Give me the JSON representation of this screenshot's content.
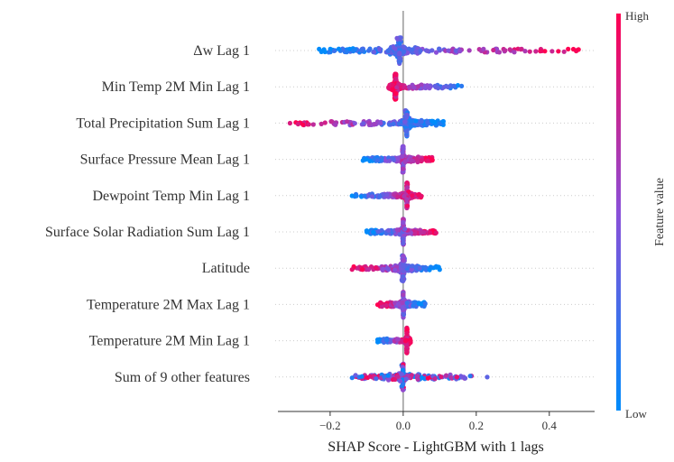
{
  "chart_data": {
    "type": "scatter",
    "subtype": "shap-beeswarm",
    "xlabel": "SHAP Score - LightGBM with 1 lags",
    "xlim": [
      -0.343,
      0.524
    ],
    "xticks": [
      -0.2,
      0.0,
      0.2,
      0.4
    ],
    "xtick_labels": [
      "−0.2",
      "0.0",
      "0.2",
      "0.4"
    ],
    "colorbar": {
      "label": "Feature value",
      "high_label": "High",
      "low_label": "Low",
      "high_color": "#ff0052",
      "low_color": "#008bfb"
    },
    "features": [
      {
        "name": "Δw Lag 1",
        "min": -0.23,
        "max": 0.48,
        "mode": -0.01,
        "high_effect": "positive"
      },
      {
        "name": "Min Temp 2M Min Lag 1",
        "min": -0.04,
        "max": 0.16,
        "mode": -0.02,
        "high_effect": "negative"
      },
      {
        "name": "Total Precipitation Sum Lag 1",
        "min": -0.31,
        "max": 0.11,
        "mode": 0.01,
        "high_effect": "negative"
      },
      {
        "name": "Surface Pressure Mean Lag 1",
        "min": -0.11,
        "max": 0.08,
        "mode": 0.0,
        "high_effect": "positive"
      },
      {
        "name": "Dewpoint Temp Min Lag 1",
        "min": -0.14,
        "max": 0.05,
        "mode": 0.01,
        "high_effect": "positive"
      },
      {
        "name": "Surface Solar Radiation Sum Lag 1",
        "min": -0.1,
        "max": 0.09,
        "mode": 0.0,
        "high_effect": "positive"
      },
      {
        "name": "Latitude",
        "min": -0.14,
        "max": 0.1,
        "mode": 0.0,
        "high_effect": "negative"
      },
      {
        "name": "Temperature 2M Max Lag 1",
        "min": -0.07,
        "max": 0.06,
        "mode": 0.0,
        "high_effect": "negative"
      },
      {
        "name": "Temperature 2M Min Lag 1",
        "min": -0.07,
        "max": 0.02,
        "mode": 0.01,
        "high_effect": "positive"
      },
      {
        "name": "Sum of 9 other features",
        "min": -0.14,
        "max": 0.23,
        "mode": 0.0,
        "high_effect": "mixed"
      }
    ],
    "grid": false,
    "zero_line": true
  }
}
